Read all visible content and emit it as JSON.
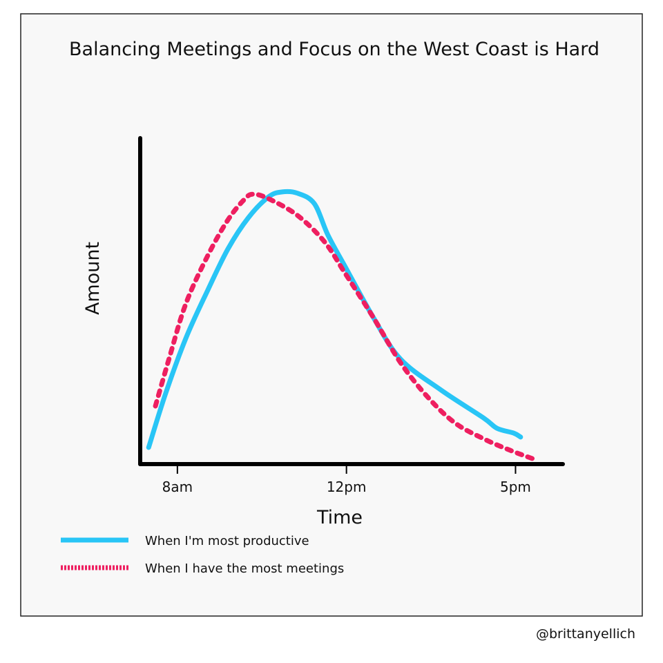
{
  "chart_data": {
    "type": "line",
    "title": "Balancing Meetings and Focus on the West Coast is Hard",
    "xlabel": "Time",
    "ylabel": "Amount",
    "xlim": [
      -0.22,
      2.28
    ],
    "ylim": [
      0,
      100
    ],
    "xticks": [
      {
        "value": 0,
        "label": "8am"
      },
      {
        "value": 1,
        "label": "12pm"
      },
      {
        "value": 2,
        "label": "5pm"
      }
    ],
    "series": [
      {
        "name": "When I'm most productive",
        "color": "#29c5f6",
        "style": "solid",
        "x": [
          -0.17,
          -0.07,
          0.05,
          0.18,
          0.3,
          0.42,
          0.54,
          0.62,
          0.71,
          0.81,
          0.89,
          0.99,
          1.16,
          1.32,
          1.56,
          1.81,
          1.89,
          1.99,
          2.03
        ],
        "values": [
          5.1,
          21.6,
          38.6,
          53.4,
          66.1,
          75.6,
          82.0,
          83.5,
          83.1,
          79.9,
          70.3,
          60.8,
          44.9,
          32.2,
          22.7,
          14.2,
          11.0,
          9.5,
          8.3
        ]
      },
      {
        "name": "When I have the most meetings",
        "color": "#ee1f60",
        "style": "dashed",
        "x": [
          -0.13,
          -0.05,
          0.05,
          0.18,
          0.3,
          0.4,
          0.45,
          0.54,
          0.71,
          0.87,
          0.99,
          1.16,
          1.32,
          1.48,
          1.64,
          1.81,
          1.97,
          2.11
        ],
        "values": [
          17.8,
          32.2,
          49.2,
          64.0,
          75.0,
          81.4,
          82.8,
          81.4,
          76.3,
          68.2,
          58.7,
          44.9,
          31.1,
          20.6,
          12.7,
          7.8,
          4.2,
          1.5
        ]
      }
    ]
  },
  "credit": "@brittanyellich"
}
